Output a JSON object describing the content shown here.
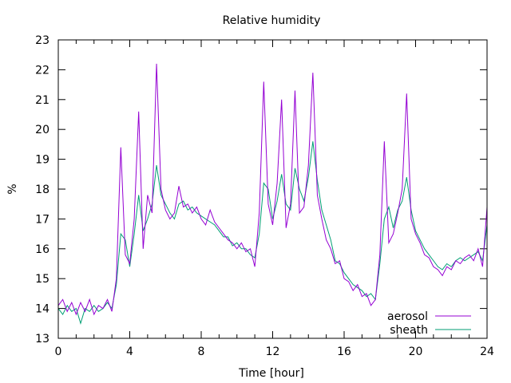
{
  "chart_data": {
    "type": "line",
    "title": "Relative humidity",
    "xlabel": "Time [hour]",
    "ylabel": "%",
    "xlim": [
      0,
      24
    ],
    "ylim": [
      13,
      23
    ],
    "x_ticks": [
      "0",
      "4",
      "8",
      "12",
      "16",
      "20",
      "24"
    ],
    "y_ticks": [
      "13",
      "14",
      "15",
      "16",
      "17",
      "18",
      "19",
      "20",
      "21",
      "22",
      "23"
    ],
    "grid": false,
    "legend_position": "bottom-right",
    "x_start": 0,
    "x_step": 0.25,
    "series": [
      {
        "name": "aerosol",
        "color": "#9400d3",
        "values": [
          14.1,
          14.3,
          13.9,
          14.2,
          13.8,
          14.2,
          13.9,
          14.3,
          13.8,
          14.1,
          14.0,
          14.3,
          13.9,
          15.0,
          19.4,
          15.8,
          15.5,
          17.0,
          20.6,
          16.0,
          17.8,
          17.2,
          22.2,
          18.0,
          17.3,
          17.0,
          17.2,
          18.1,
          17.4,
          17.5,
          17.2,
          17.4,
          17.0,
          16.8,
          17.3,
          16.9,
          16.7,
          16.5,
          16.3,
          16.2,
          16.0,
          16.2,
          15.9,
          16.0,
          15.4,
          17.2,
          21.6,
          17.5,
          16.8,
          18.2,
          21.0,
          16.7,
          17.5,
          21.3,
          17.2,
          17.4,
          18.8,
          21.9,
          17.8,
          17.0,
          16.3,
          16.0,
          15.5,
          15.6,
          15.0,
          14.9,
          14.6,
          14.8,
          14.4,
          14.5,
          14.1,
          14.3,
          15.8,
          19.6,
          16.2,
          16.5,
          17.2,
          18.0,
          21.2,
          17.0,
          16.5,
          16.2,
          15.8,
          15.7,
          15.4,
          15.3,
          15.1,
          15.4,
          15.3,
          15.6,
          15.5,
          15.7,
          15.8,
          15.6,
          16.0,
          15.4,
          17.4
        ]
      },
      {
        "name": "sheath",
        "color": "#009e73",
        "values": [
          14.0,
          13.8,
          14.1,
          13.9,
          14.0,
          13.5,
          14.0,
          13.9,
          14.1,
          13.9,
          14.0,
          14.2,
          14.0,
          14.8,
          16.5,
          16.3,
          15.4,
          16.5,
          17.8,
          16.6,
          17.0,
          17.5,
          18.8,
          17.8,
          17.5,
          17.2,
          17.0,
          17.5,
          17.6,
          17.3,
          17.4,
          17.2,
          17.1,
          17.0,
          16.9,
          16.8,
          16.6,
          16.4,
          16.4,
          16.1,
          16.2,
          16.0,
          16.0,
          15.8,
          15.7,
          16.5,
          18.2,
          18.0,
          17.0,
          17.6,
          18.5,
          17.5,
          17.3,
          18.7,
          18.0,
          17.6,
          18.4,
          19.6,
          18.3,
          17.3,
          16.8,
          16.3,
          15.6,
          15.5,
          15.2,
          15.0,
          14.8,
          14.7,
          14.6,
          14.4,
          14.5,
          14.3,
          15.5,
          17.0,
          17.4,
          16.7,
          17.3,
          17.6,
          18.4,
          17.3,
          16.6,
          16.3,
          16.0,
          15.8,
          15.6,
          15.4,
          15.3,
          15.5,
          15.4,
          15.6,
          15.7,
          15.6,
          15.7,
          15.8,
          15.9,
          15.6,
          16.8
        ]
      }
    ]
  }
}
